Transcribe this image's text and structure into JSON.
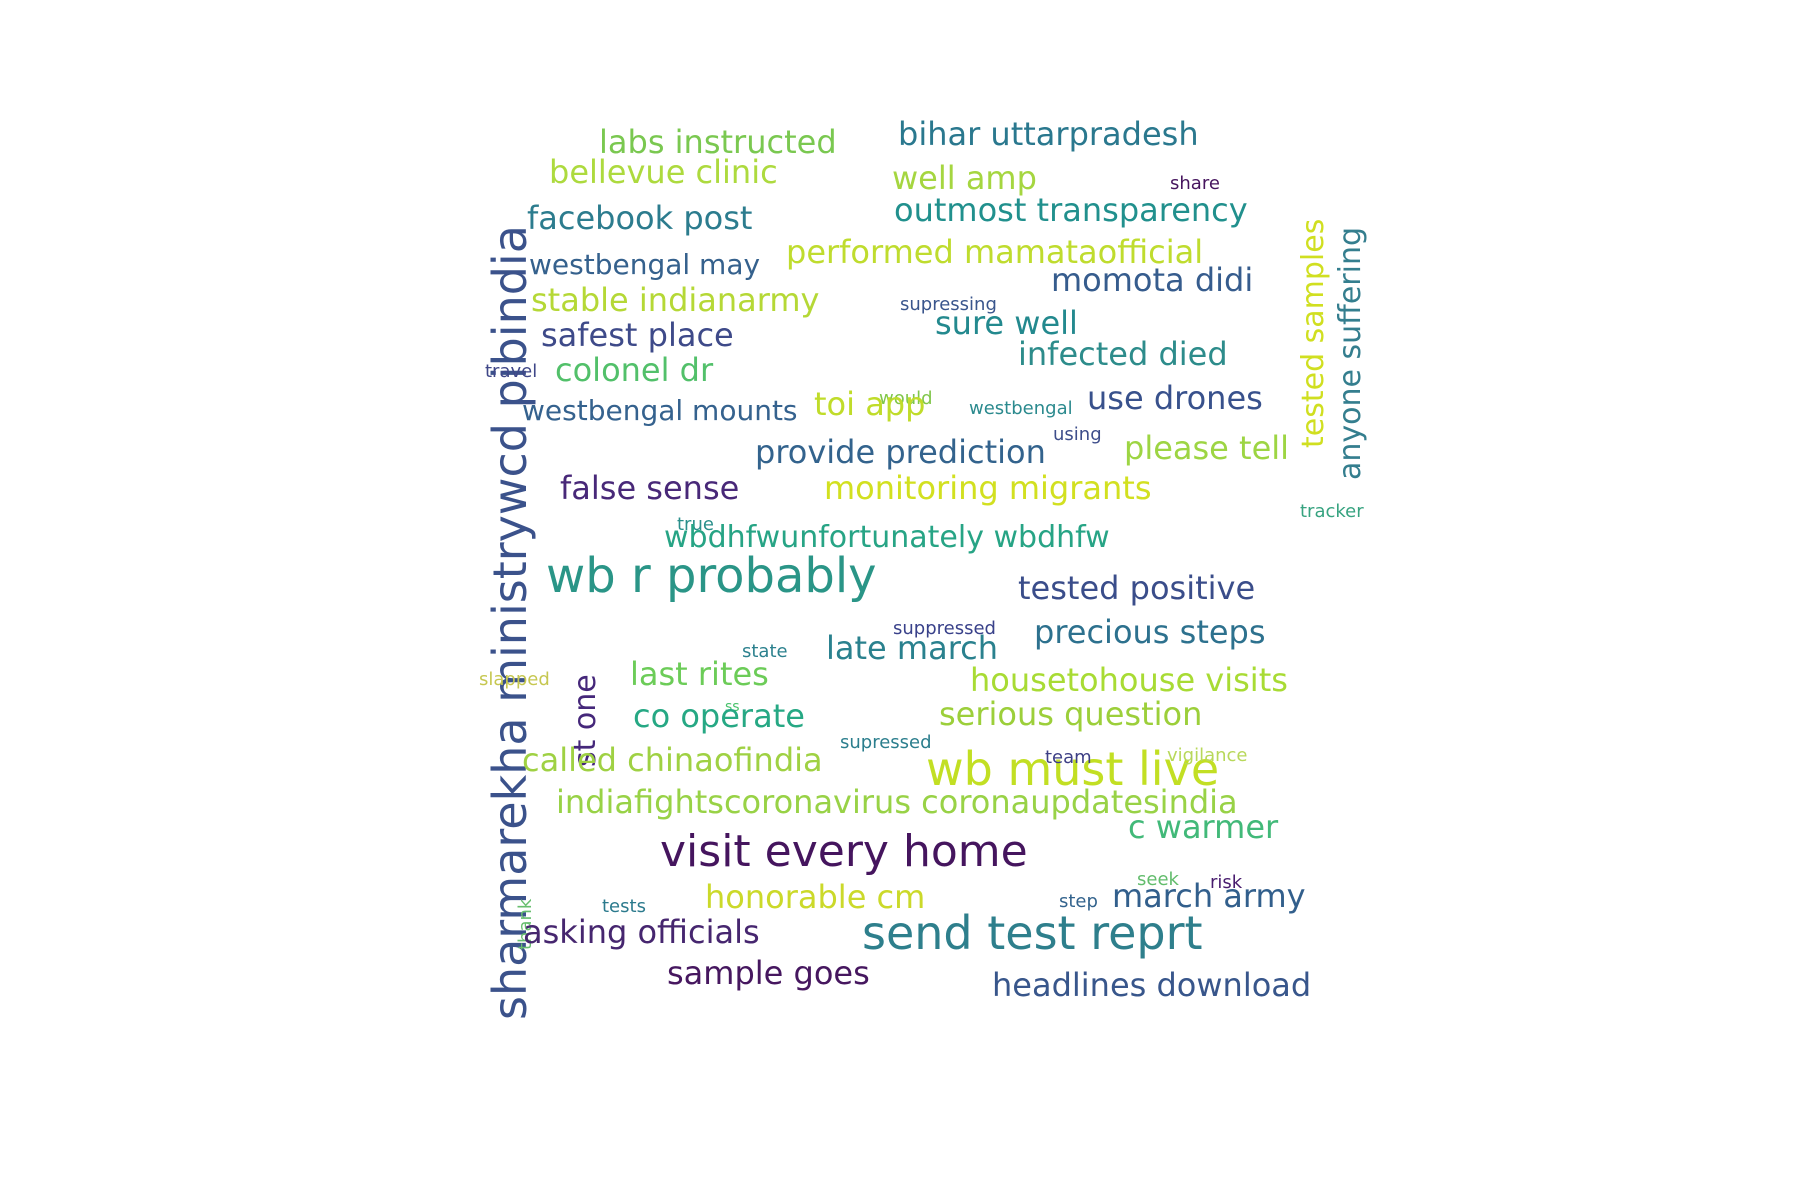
{
  "words": [
    {
      "text": "sharmarekha ministrywcd pibindia",
      "color": "#3b528b",
      "v": true
    },
    {
      "text": "wb r probably",
      "color": "#2a9587"
    },
    {
      "text": "visit every home",
      "color": "#45155e"
    },
    {
      "text": "wb must live",
      "color": "#c2df23"
    },
    {
      "text": "send test reprt",
      "color": "#2e7f8c"
    },
    {
      "text": "labs instructed",
      "color": "#7ac850"
    },
    {
      "text": "bihar uttarpradesh",
      "color": "#2a788e"
    },
    {
      "text": "bellevue clinic",
      "color": "#adda3e"
    },
    {
      "text": "well amp",
      "color": "#a5d640"
    },
    {
      "text": "facebook post",
      "color": "#2c7c8e"
    },
    {
      "text": "outmost transparency",
      "color": "#21908d"
    },
    {
      "text": "share",
      "color": "#46155e"
    },
    {
      "text": "westbengal may",
      "color": "#35618d"
    },
    {
      "text": "performed mamataofficial",
      "color": "#bfdc2e"
    },
    {
      "text": "momota didi",
      "color": "#365c8d"
    },
    {
      "text": "tested samples",
      "color": "#d0df20",
      "v": true
    },
    {
      "text": "anyone suffering",
      "color": "#347e8e",
      "v": true
    },
    {
      "text": "stable indianarmy",
      "color": "#b5d836"
    },
    {
      "text": "supressing",
      "color": "#39558c"
    },
    {
      "text": "sure well",
      "color": "#23898e"
    },
    {
      "text": "safest place",
      "color": "#3e4a89"
    },
    {
      "text": "infected died",
      "color": "#2d8c8b"
    },
    {
      "text": "travel",
      "color": "#3f4788"
    },
    {
      "text": "colonel dr",
      "color": "#52c06a"
    },
    {
      "text": "would",
      "color": "#80c64a"
    },
    {
      "text": "westbengal",
      "color": "#2b8a8e"
    },
    {
      "text": "use drones",
      "color": "#38518c"
    },
    {
      "text": "westbengal mounts",
      "color": "#35628e"
    },
    {
      "text": "toi app",
      "color": "#c0dc2a"
    },
    {
      "text": "using",
      "color": "#3d4d8a"
    },
    {
      "text": "provide prediction",
      "color": "#33638d"
    },
    {
      "text": "please tell",
      "color": "#9dd543"
    },
    {
      "text": "false sense",
      "color": "#482878"
    },
    {
      "text": "monitoring migrants",
      "color": "#d2e020"
    },
    {
      "text": "true",
      "color": "#2a8f8b"
    },
    {
      "text": "tracker",
      "color": "#37a380"
    },
    {
      "text": "wbdhfwunfortunately wbdhfw",
      "color": "#27a485"
    },
    {
      "text": "tested positive",
      "color": "#3a4d8a"
    },
    {
      "text": "suppressed",
      "color": "#39418a"
    },
    {
      "text": "st one",
      "color": "#45277a",
      "v": true
    },
    {
      "text": "state",
      "color": "#2c818e"
    },
    {
      "text": "precious steps",
      "color": "#2d718e"
    },
    {
      "text": "late march",
      "color": "#2a818e"
    },
    {
      "text": "slapped",
      "color": "#c6c750"
    },
    {
      "text": "last rites",
      "color": "#6ccc58"
    },
    {
      "text": "ss",
      "color": "#48c26b"
    },
    {
      "text": "housetohouse visits",
      "color": "#a8db34"
    },
    {
      "text": "co operate",
      "color": "#26a884"
    },
    {
      "text": "supressed",
      "color": "#2b7e8d"
    },
    {
      "text": "serious question",
      "color": "#9ccf3a"
    },
    {
      "text": "team",
      "color": "#3d3f85"
    },
    {
      "text": "vigilance",
      "color": "#b8d85a"
    },
    {
      "text": "called chinaofindia",
      "color": "#9fd143"
    },
    {
      "text": "indiafightscoronavirus coronaupdatesindia",
      "color": "#98d246"
    },
    {
      "text": "c warmer",
      "color": "#42b979"
    },
    {
      "text": "thank",
      "color": "#67be6e",
      "v": true
    },
    {
      "text": "seek",
      "color": "#62bc6c"
    },
    {
      "text": "risk",
      "color": "#481c6e"
    },
    {
      "text": "tests",
      "color": "#2b7a8d"
    },
    {
      "text": "step",
      "color": "#33638d"
    },
    {
      "text": "honorable cm",
      "color": "#cbd92a"
    },
    {
      "text": "march army",
      "color": "#325f8c"
    },
    {
      "text": "asking officials",
      "color": "#46266f"
    },
    {
      "text": "sample goes",
      "color": "#46175f"
    },
    {
      "text": "headlines download",
      "color": "#38568b"
    }
  ]
}
